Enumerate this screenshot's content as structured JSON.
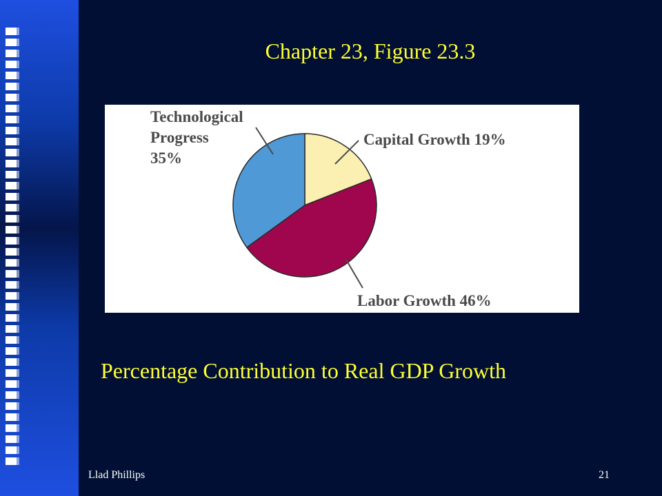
{
  "slide": {
    "title": "Chapter 23, Figure 23.3",
    "caption": "Percentage Contribution to Real GDP Growth",
    "footer_author": "Llad Phillips",
    "page_number": "21"
  },
  "chart_data": {
    "type": "pie",
    "title": "",
    "slices": [
      {
        "label": "Capital Growth 19%",
        "value": 19,
        "color": "#fbefb2"
      },
      {
        "label": "Labor Growth 46%",
        "value": 46,
        "color": "#a0064e"
      },
      {
        "label": "Technological Progress 35%",
        "value": 35,
        "color": "#4f99d6"
      }
    ],
    "start_angle_deg": 0,
    "direction": "clockwise",
    "legend": "none"
  },
  "labels": {
    "capital": [
      "Capital Growth 19%"
    ],
    "labor": [
      "Labor Growth 46%"
    ],
    "tech": [
      "Technological",
      "Progress",
      "35%"
    ]
  },
  "colors": {
    "background": "#000f33",
    "title_text": "#ffff33",
    "sidebar": "#1e4fe0"
  }
}
